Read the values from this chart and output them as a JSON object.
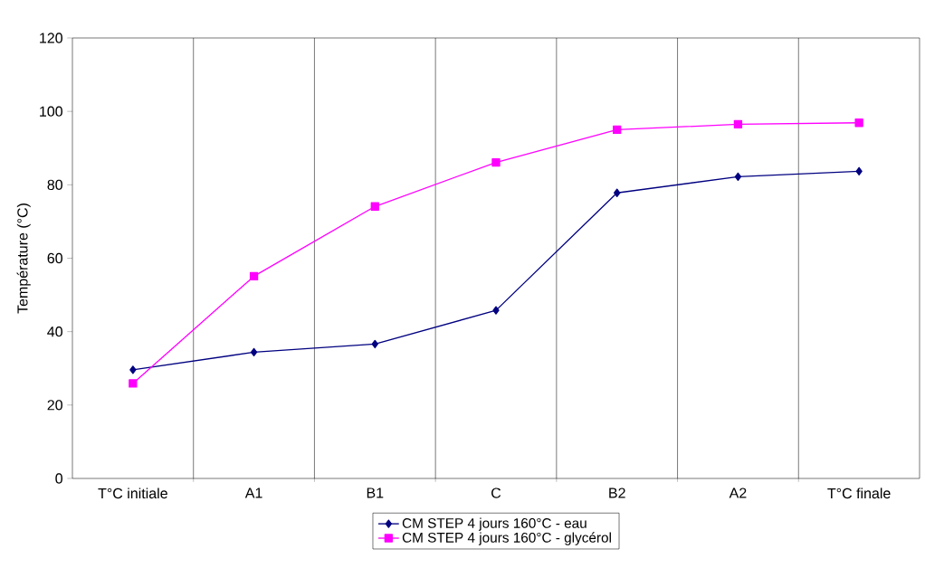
{
  "chart_data": {
    "type": "line",
    "ylabel": "Température (°C)",
    "categories": [
      "T°C initiale",
      "A1",
      "B1",
      "C",
      "B2",
      "A2",
      "T°C finale"
    ],
    "series": [
      {
        "name": "CM STEP 4 jours 160°C - eau",
        "color": "#000080",
        "marker": "diamond",
        "values": [
          29.6,
          34.4,
          36.6,
          45.8,
          77.8,
          82.2,
          83.7
        ]
      },
      {
        "name": "CM STEP 4 jours 160°C - glycérol",
        "color": "#ff00ff",
        "marker": "square",
        "values": [
          25.9,
          55.1,
          74.1,
          86.1,
          95.0,
          96.5,
          96.9
        ]
      }
    ],
    "ylim": [
      0,
      120
    ],
    "yticks": [
      0,
      20,
      40,
      60,
      80,
      100,
      120
    ],
    "grid": "x",
    "legend": "bottom"
  }
}
